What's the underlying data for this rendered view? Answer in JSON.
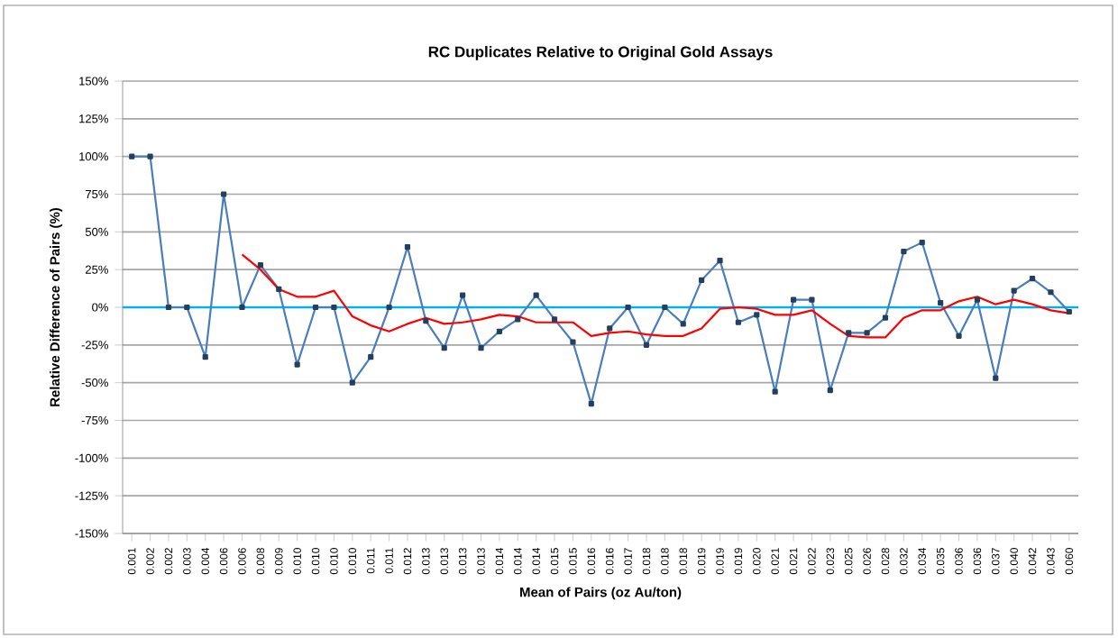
{
  "chart_data": {
    "type": "line",
    "title": "RC Duplicates Relative to Original Gold Assays",
    "xlabel": "Mean of Pairs (oz Au/ton)",
    "ylabel": "Relative Difference of Pairs (%)",
    "categories": [
      "0.001",
      "0.002",
      "0.002",
      "0.003",
      "0.004",
      "0.006",
      "0.006",
      "0.008",
      "0.009",
      "0.010",
      "0.010",
      "0.010",
      "0.010",
      "0.011",
      "0.011",
      "0.012",
      "0.013",
      "0.013",
      "0.013",
      "0.013",
      "0.014",
      "0.014",
      "0.014",
      "0.015",
      "0.015",
      "0.016",
      "0.016",
      "0.017",
      "0.018",
      "0.018",
      "0.018",
      "0.019",
      "0.019",
      "0.019",
      "0.020",
      "0.021",
      "0.021",
      "0.022",
      "0.023",
      "0.025",
      "0.026",
      "0.028",
      "0.032",
      "0.034",
      "0.035",
      "0.036",
      "0.036",
      "0.037",
      "0.040",
      "0.042",
      "0.043",
      "0.060"
    ],
    "series": [
      {
        "color": "#4a7ebb",
        "marker": "square",
        "values": [
          100,
          100,
          0,
          0,
          -33,
          75,
          0,
          28,
          12,
          -38,
          0,
          0,
          -50,
          -33,
          0,
          40,
          -9,
          -27,
          8,
          -27,
          -16,
          -8,
          8,
          -8,
          -23,
          -64,
          -14,
          0,
          -25,
          0,
          -11,
          18,
          31,
          -10,
          -5,
          -56,
          5,
          5,
          -55,
          -17,
          -17,
          -7,
          37,
          43,
          3,
          -19,
          5,
          -47,
          11,
          19,
          10,
          -3
        ]
      },
      {
        "color": "#ff0000",
        "marker": "none",
        "values": [
          null,
          null,
          null,
          null,
          null,
          null,
          35,
          25,
          12,
          7,
          7,
          11,
          -6,
          -12,
          -16,
          -11,
          -7,
          -11,
          -10,
          -8,
          -5,
          -6,
          -10,
          -10,
          -10,
          -19,
          -17,
          -16,
          -18,
          -19,
          -19,
          -14,
          -1,
          0,
          -1,
          -5,
          -5,
          -2,
          -11,
          -19,
          -20,
          -20,
          -7,
          -2,
          -2,
          4,
          7,
          2,
          5,
          2,
          -2,
          -4
        ]
      }
    ],
    "ylim": [
      -150,
      150
    ],
    "yticks": [
      {
        "value": -150,
        "label": "-150%"
      },
      {
        "value": -125,
        "label": "-125%"
      },
      {
        "value": -100,
        "label": "-100%"
      },
      {
        "value": -75,
        "label": "-75%"
      },
      {
        "value": -50,
        "label": "-50%"
      },
      {
        "value": -25,
        "label": "-25%"
      },
      {
        "value": 0,
        "label": "0%"
      },
      {
        "value": 25,
        "label": "25%"
      },
      {
        "value": 50,
        "label": "50%"
      },
      {
        "value": 75,
        "label": "75%"
      },
      {
        "value": 100,
        "label": "100%"
      },
      {
        "value": 125,
        "label": "125%"
      },
      {
        "value": 150,
        "label": "150%"
      }
    ],
    "grid": "y",
    "legend": false,
    "ref_lines": [
      {
        "axis": "y",
        "value": 0,
        "color": "#00b0f0"
      }
    ]
  }
}
